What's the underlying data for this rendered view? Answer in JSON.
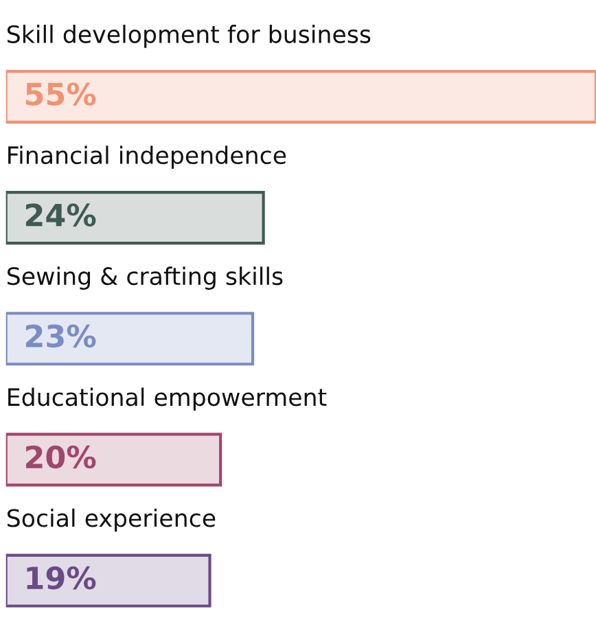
{
  "chart_data": {
    "type": "bar",
    "orientation": "horizontal",
    "categories": [
      "Skill development for business",
      "Financial independence",
      "Sewing & crafting skills",
      "Educational empowerment",
      "Social experience"
    ],
    "values": [
      55,
      24,
      23,
      20,
      19
    ],
    "value_labels": [
      "55%",
      "24%",
      "23%",
      "20%",
      "19%"
    ],
    "colors": [
      "#ef9373",
      "#3f5b53",
      "#7a8cc2",
      "#a0476b",
      "#6a4a86"
    ]
  }
}
